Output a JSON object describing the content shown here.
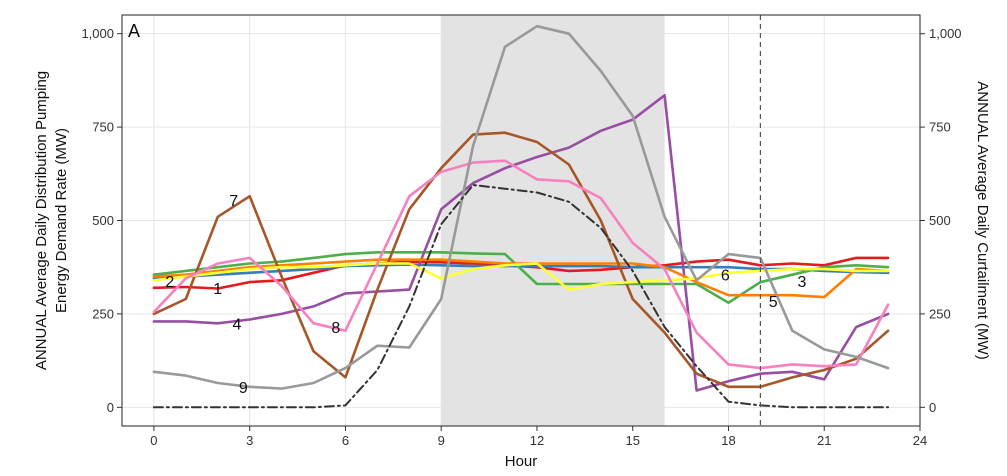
{
  "chart_data": {
    "type": "line",
    "panel_label": "A",
    "xlabel": "Hour",
    "ylabel_left_lines": [
      "ANNUAL Average Daily Distribution Pumping",
      "Energy Demand Rate (MW)"
    ],
    "ylabel_right": "ANNUAL Average Daily Curtailment (MW)",
    "xlim": [
      -1,
      24
    ],
    "ylim": [
      -50,
      1050
    ],
    "x_ticks": [
      0,
      3,
      6,
      9,
      12,
      15,
      18,
      21,
      24
    ],
    "x_tick_labels": [
      "0",
      "3",
      "6",
      "9",
      "12",
      "15",
      "18",
      "21",
      "24"
    ],
    "y_ticks": [
      0,
      250,
      500,
      750,
      1000
    ],
    "y_tick_labels_left": [
      "0",
      "250",
      "500",
      "750",
      "1,000"
    ],
    "y_tick_labels_right": [
      "0",
      "250",
      "500",
      "750",
      "1,000"
    ],
    "grid": true,
    "shaded_x_range": [
      9,
      16
    ],
    "vertical_dashed_x": 19,
    "x": [
      0,
      1,
      2,
      3,
      4,
      5,
      6,
      7,
      8,
      9,
      10,
      11,
      12,
      13,
      14,
      15,
      16,
      17,
      18,
      19,
      20,
      21,
      22,
      23
    ],
    "series": [
      {
        "label": "1",
        "color": "#e41a1c",
        "label_pos": [
          2,
          320
        ],
        "values": [
          320,
          322,
          318,
          335,
          340,
          360,
          380,
          385,
          390,
          388,
          385,
          380,
          375,
          365,
          368,
          375,
          380,
          390,
          395,
          380,
          385,
          380,
          400,
          400
        ]
      },
      {
        "label": "2",
        "color": "#377eb8",
        "label_pos": [
          0.5,
          338
        ],
        "values": [
          345,
          350,
          355,
          360,
          365,
          370,
          378,
          380,
          382,
          380,
          378,
          378,
          378,
          378,
          378,
          375,
          375,
          375,
          375,
          370,
          370,
          365,
          362,
          360
        ]
      },
      {
        "label": "3",
        "color": "#4daf4a",
        "label_pos": [
          20.3,
          338
        ],
        "values": [
          355,
          365,
          375,
          385,
          390,
          400,
          410,
          415,
          415,
          415,
          412,
          410,
          330,
          330,
          330,
          330,
          330,
          330,
          280,
          335,
          355,
          375,
          380,
          375
        ]
      },
      {
        "label": "4",
        "color": "#984ea3",
        "label_pos": [
          2.6,
          225
        ],
        "values": [
          230,
          230,
          225,
          235,
          250,
          270,
          305,
          310,
          315,
          530,
          600,
          640,
          670,
          695,
          740,
          770,
          835,
          45,
          70,
          90,
          95,
          75,
          215,
          250
        ]
      },
      {
        "label": "5",
        "color": "#ff7f00",
        "label_pos": [
          19.4,
          285
        ],
        "values": [
          350,
          355,
          365,
          375,
          380,
          385,
          390,
          395,
          395,
          395,
          390,
          385,
          385,
          385,
          385,
          385,
          375,
          335,
          300,
          300,
          300,
          295,
          370,
          365
        ]
      },
      {
        "label": "6",
        "color": "#a65628",
        "label_pos": [
          17.9,
          355
        ],
        "values": [
          250,
          290,
          510,
          565,
          350,
          150,
          80,
          315,
          530,
          640,
          730,
          735,
          710,
          650,
          500,
          290,
          200,
          90,
          55,
          55,
          80,
          100,
          130,
          205
        ]
      },
      {
        "label": "7",
        "color": "#ffff33",
        "label_pos": [
          2.5,
          555
        ],
        "values": [
          340,
          350,
          360,
          370,
          375,
          375,
          380,
          385,
          385,
          345,
          370,
          380,
          385,
          315,
          330,
          335,
          340,
          345,
          360,
          365,
          370,
          370,
          365,
          365
        ]
      },
      {
        "label": "8",
        "color": "#f781bf",
        "label_pos": [
          5.7,
          215
        ],
        "values": [
          255,
          345,
          385,
          400,
          325,
          225,
          205,
          385,
          565,
          630,
          655,
          660,
          610,
          605,
          560,
          440,
          370,
          200,
          115,
          105,
          115,
          110,
          115,
          275
        ]
      },
      {
        "label": "9",
        "color": "#999999",
        "label_pos": [
          2.8,
          55
        ],
        "values": [
          95,
          85,
          65,
          55,
          50,
          65,
          105,
          165,
          160,
          290,
          700,
          965,
          1020,
          1000,
          900,
          780,
          510,
          340,
          410,
          400,
          205,
          155,
          135,
          105
        ]
      },
      {
        "label": "",
        "color": "#333333",
        "dash": "dashdot",
        "values": [
          0,
          0,
          0,
          0,
          0,
          0,
          5,
          100,
          270,
          490,
          595,
          585,
          575,
          550,
          480,
          365,
          215,
          110,
          15,
          5,
          0,
          0,
          0,
          0
        ]
      }
    ]
  }
}
